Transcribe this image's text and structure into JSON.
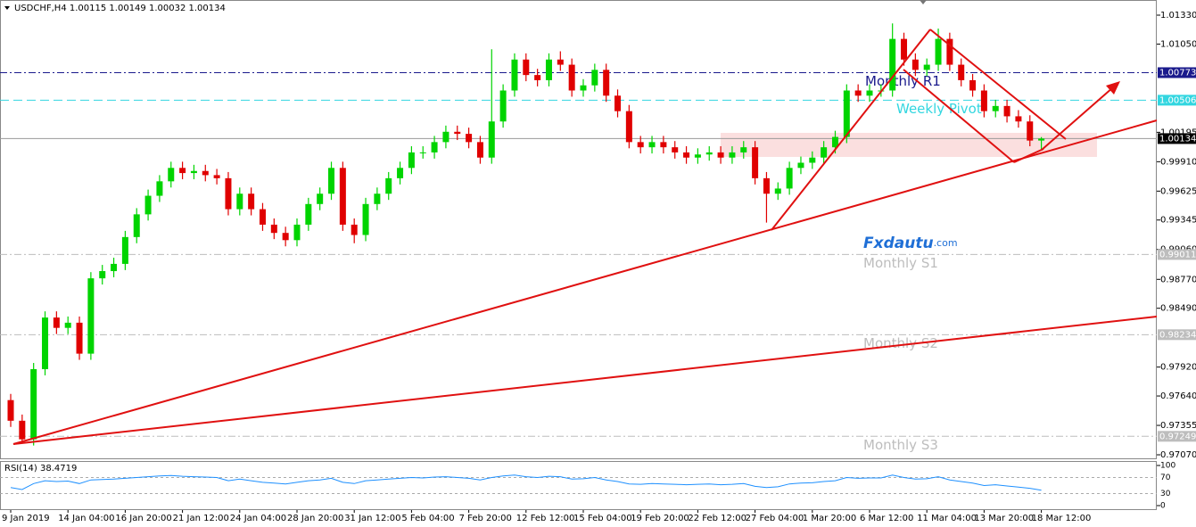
{
  "chart_data": {
    "type": "candlestick",
    "symbol": "USDCHF,H4",
    "categories": [
      "9 Jan 2019",
      null,
      null,
      null,
      null,
      "14 Jan 04:00",
      null,
      null,
      null,
      null,
      "16 Jan 20:00",
      null,
      null,
      null,
      null,
      "21 Jan 12:00",
      null,
      null,
      null,
      null,
      "24 Jan 04:00",
      null,
      null,
      null,
      null,
      "28 Jan 20:00",
      null,
      null,
      null,
      null,
      "31 Jan 12:00",
      null,
      null,
      null,
      null,
      "5 Feb 04:00",
      null,
      null,
      null,
      null,
      "7 Feb 20:00",
      null,
      null,
      null,
      null,
      "12 Feb 12:00",
      null,
      null,
      null,
      null,
      "15 Feb 04:00",
      null,
      null,
      null,
      null,
      "19 Feb 20:00",
      null,
      null,
      null,
      null,
      "22 Feb 12:00",
      null,
      null,
      null,
      null,
      "27 Feb 04:00",
      null,
      null,
      null,
      null,
      "1 Mar 20:00",
      null,
      null,
      null,
      null,
      "6 Mar 12:00",
      null,
      null,
      null,
      null,
      "11 Mar 04:00",
      null,
      null,
      null,
      null,
      "13 Mar 20:00",
      null,
      null,
      null,
      null,
      "18 Mar 12:00"
    ],
    "open": [
      0.976,
      0.974,
      0.9722,
      0.979,
      0.984,
      0.983,
      0.9835,
      0.9805,
      0.9878,
      0.9885,
      0.9892,
      0.9918,
      0.994,
      0.9958,
      0.9972,
      0.9985,
      0.998,
      0.9982,
      0.9978,
      0.9975,
      0.9945,
      0.996,
      0.9945,
      0.993,
      0.9922,
      0.9915,
      0.993,
      0.995,
      0.996,
      0.9985,
      0.993,
      0.992,
      0.995,
      0.996,
      0.9975,
      0.9985,
      1.0,
      1.0,
      1.001,
      1.002,
      1.0018,
      1.001,
      0.9995,
      1.003,
      1.006,
      1.009,
      1.0075,
      1.007,
      1.009,
      1.0085,
      1.006,
      1.0065,
      1.008,
      1.0055,
      1.004,
      1.001,
      1.0005,
      1.001,
      1.0005,
      1.0,
      0.9995,
      0.9998,
      1.0,
      0.9995,
      1.0,
      1.0005,
      0.9975,
      0.996,
      0.9965,
      0.9985,
      0.999,
      0.9995,
      1.0005,
      1.0015,
      1.006,
      1.0055,
      1.006,
      1.006,
      1.011,
      1.009,
      1.008,
      1.0085,
      1.011,
      1.0085,
      1.007,
      1.006,
      1.004,
      1.0045,
      1.0035,
      1.003,
      1.00115
    ],
    "high": [
      0.9766,
      0.9746,
      0.9796,
      0.9846,
      0.9846,
      0.9841,
      0.9841,
      0.9884,
      0.9891,
      0.9898,
      0.9924,
      0.9946,
      0.9964,
      0.9978,
      0.9991,
      0.9991,
      0.9988,
      0.9988,
      0.9984,
      0.9981,
      0.9966,
      0.9966,
      0.9951,
      0.9936,
      0.9928,
      0.9936,
      0.9956,
      0.9966,
      0.9991,
      0.9991,
      0.9936,
      0.9956,
      0.9966,
      0.9981,
      0.9991,
      1.0006,
      1.0006,
      1.0016,
      1.0026,
      1.0026,
      1.0024,
      1.0016,
      1.01,
      1.0066,
      1.0096,
      1.0096,
      1.0081,
      1.0096,
      1.0098,
      1.0091,
      1.0071,
      1.0086,
      1.0086,
      1.0061,
      1.0046,
      1.0016,
      1.0016,
      1.0016,
      1.0011,
      1.0006,
      1.0004,
      1.0006,
      1.0006,
      1.0006,
      1.0011,
      1.0011,
      0.9981,
      0.9971,
      0.9991,
      0.9996,
      1.0001,
      1.0011,
      1.0021,
      1.0066,
      1.0066,
      1.0066,
      1.0066,
      1.0125,
      1.0116,
      1.0096,
      1.0091,
      1.012,
      1.0116,
      1.0091,
      1.0076,
      1.0066,
      1.0051,
      1.0051,
      1.0041,
      1.0036,
      1.00149
    ],
    "low": [
      0.9734,
      0.9718,
      0.9716,
      0.9784,
      0.9824,
      0.9824,
      0.9799,
      0.9799,
      0.9872,
      0.9879,
      0.9886,
      0.9912,
      0.9934,
      0.9952,
      0.9966,
      0.9974,
      0.9974,
      0.9972,
      0.9969,
      0.9939,
      0.9939,
      0.9939,
      0.9924,
      0.9916,
      0.9909,
      0.9909,
      0.9924,
      0.9944,
      0.9954,
      0.9924,
      0.9912,
      0.9914,
      0.9944,
      0.9954,
      0.9969,
      0.9979,
      0.9994,
      0.9994,
      1.0004,
      1.0012,
      1.0004,
      0.9989,
      0.9989,
      1.0024,
      1.0054,
      1.0069,
      1.0064,
      1.0064,
      1.0079,
      1.0054,
      1.0054,
      1.0059,
      1.0049,
      1.0034,
      1.0004,
      0.9999,
      0.9999,
      0.9999,
      0.9994,
      0.9989,
      0.9989,
      0.9992,
      0.9989,
      0.9989,
      0.9994,
      0.9969,
      0.9932,
      0.9954,
      0.9959,
      0.9979,
      0.9984,
      0.9989,
      0.9999,
      1.0009,
      1.0049,
      1.0049,
      1.0054,
      1.0054,
      1.0084,
      1.0074,
      1.0074,
      1.0079,
      1.0079,
      1.0064,
      1.0054,
      1.0034,
      1.0034,
      1.0029,
      1.0024,
      1.0006,
      1.00032
    ],
    "close": [
      0.974,
      0.9722,
      0.979,
      0.984,
      0.983,
      0.9835,
      0.9805,
      0.9878,
      0.9885,
      0.9892,
      0.9918,
      0.994,
      0.9958,
      0.9972,
      0.9985,
      0.998,
      0.9982,
      0.9978,
      0.9975,
      0.9945,
      0.996,
      0.9945,
      0.993,
      0.9922,
      0.9915,
      0.993,
      0.995,
      0.996,
      0.9985,
      0.993,
      0.992,
      0.995,
      0.996,
      0.9975,
      0.9985,
      1.0,
      1.0,
      1.001,
      1.002,
      1.0018,
      1.001,
      0.9995,
      1.003,
      1.006,
      1.009,
      1.0075,
      1.007,
      1.009,
      1.0085,
      1.006,
      1.0065,
      1.008,
      1.0055,
      1.004,
      1.001,
      1.0005,
      1.001,
      1.0005,
      1.0,
      0.9995,
      0.9998,
      1.0,
      0.9995,
      1.0,
      1.0005,
      0.9975,
      0.996,
      0.9965,
      0.9985,
      0.999,
      0.9995,
      1.0005,
      1.0015,
      1.006,
      1.0055,
      1.006,
      1.006,
      1.011,
      1.009,
      1.008,
      1.0085,
      1.011,
      1.0085,
      1.007,
      1.006,
      1.004,
      1.0045,
      1.0035,
      1.003,
      1.00115,
      1.00134
    ],
    "colors": {
      "up": "#00d400",
      "down": "#e00000"
    },
    "ylim": [
      0.97027,
      1.01477
    ],
    "yticks": [
      {
        "value": 1.0133,
        "label": "1.01330"
      },
      {
        "value": 1.0105,
        "label": "1.01050"
      },
      {
        "value": 1.00195,
        "label": "1.00195"
      },
      {
        "value": 0.9991,
        "label": "0.99910"
      },
      0.99625,
      0.99345,
      {
        "value": 0.9906,
        "label": "0.99060"
      },
      {
        "value": 0.9877,
        "label": "0.98770"
      },
      {
        "value": 0.9849,
        "label": "0.98490"
      },
      {
        "value": 0.9792,
        "label": "0.97920"
      },
      {
        "value": 0.9764,
        "label": "0.97640"
      },
      0.97355,
      {
        "value": 0.9707,
        "label": "0.97070"
      }
    ],
    "levels": [
      {
        "name": "Monthly R1",
        "value": 1.00773,
        "color": "#1a1a8c",
        "style": "dashdot"
      },
      {
        "name": "Weekly Pivot",
        "value": 1.00506,
        "color": "#33d6e0",
        "style": "dash"
      },
      {
        "name": "Monthly S1",
        "value": 0.99011,
        "color": "#bdbdbd",
        "style": "dashdot"
      },
      {
        "name": "Monthly S2",
        "value": 0.98234,
        "color": "#bdbdbd",
        "style": "dashdot"
      },
      {
        "name": "Monthly S3",
        "value": 0.97249,
        "color": "#bdbdbd",
        "style": "dashdot"
      }
    ],
    "watermark": {
      "brand": "Fxdautu",
      "suffix": ".com"
    },
    "rsi": {
      "name": "RSI(14)",
      "color": "#1e90ff",
      "ylim": [
        0,
        100
      ],
      "yticks": [
        100,
        70,
        30,
        0
      ],
      "values": [
        45,
        40,
        55,
        62,
        60,
        61,
        55,
        64,
        65,
        66,
        68,
        70,
        72,
        74,
        75,
        73,
        72,
        71,
        70,
        62,
        66,
        62,
        58,
        56,
        54,
        58,
        62,
        64,
        68,
        58,
        55,
        62,
        64,
        66,
        68,
        70,
        69,
        71,
        72,
        70,
        68,
        64,
        70,
        74,
        76,
        72,
        70,
        73,
        72,
        66,
        67,
        70,
        64,
        60,
        54,
        53,
        55,
        54,
        53,
        52,
        53,
        54,
        52,
        53,
        55,
        48,
        45,
        47,
        54,
        56,
        57,
        60,
        62,
        70,
        68,
        69,
        69,
        76,
        70,
        66,
        67,
        72,
        64,
        60,
        56,
        50,
        52,
        49,
        46,
        43,
        38.4719
      ]
    }
  }
}
